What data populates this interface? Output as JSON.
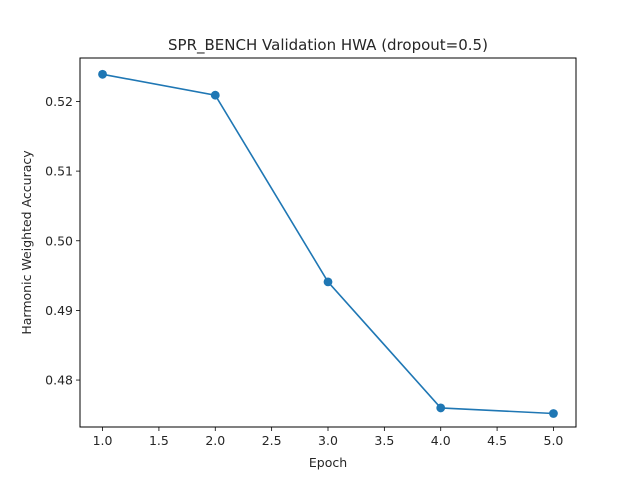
{
  "chart_data": {
    "type": "line",
    "title": "SPR_BENCH Validation HWA (dropout=0.5)",
    "xlabel": "Epoch",
    "ylabel": "Harmonic Weighted Accuracy",
    "xlim": [
      0.8,
      5.2
    ],
    "ylim": [
      0.47326,
      0.52624
    ],
    "x_ticks": [
      "1.0",
      "1.5",
      "2.0",
      "2.5",
      "3.0",
      "3.5",
      "4.0",
      "4.5",
      "5.0"
    ],
    "y_ticks": [
      "0.48",
      "0.49",
      "0.50",
      "0.51",
      "0.52"
    ],
    "grid": false,
    "series": [
      {
        "x": [
          1.0,
          2.0,
          3.0,
          4.0,
          5.0
        ],
        "values": [
          0.5239,
          0.5209,
          0.4941,
          0.476,
          0.4752
        ],
        "color": "#1f77b4",
        "marker": "circle"
      }
    ]
  }
}
